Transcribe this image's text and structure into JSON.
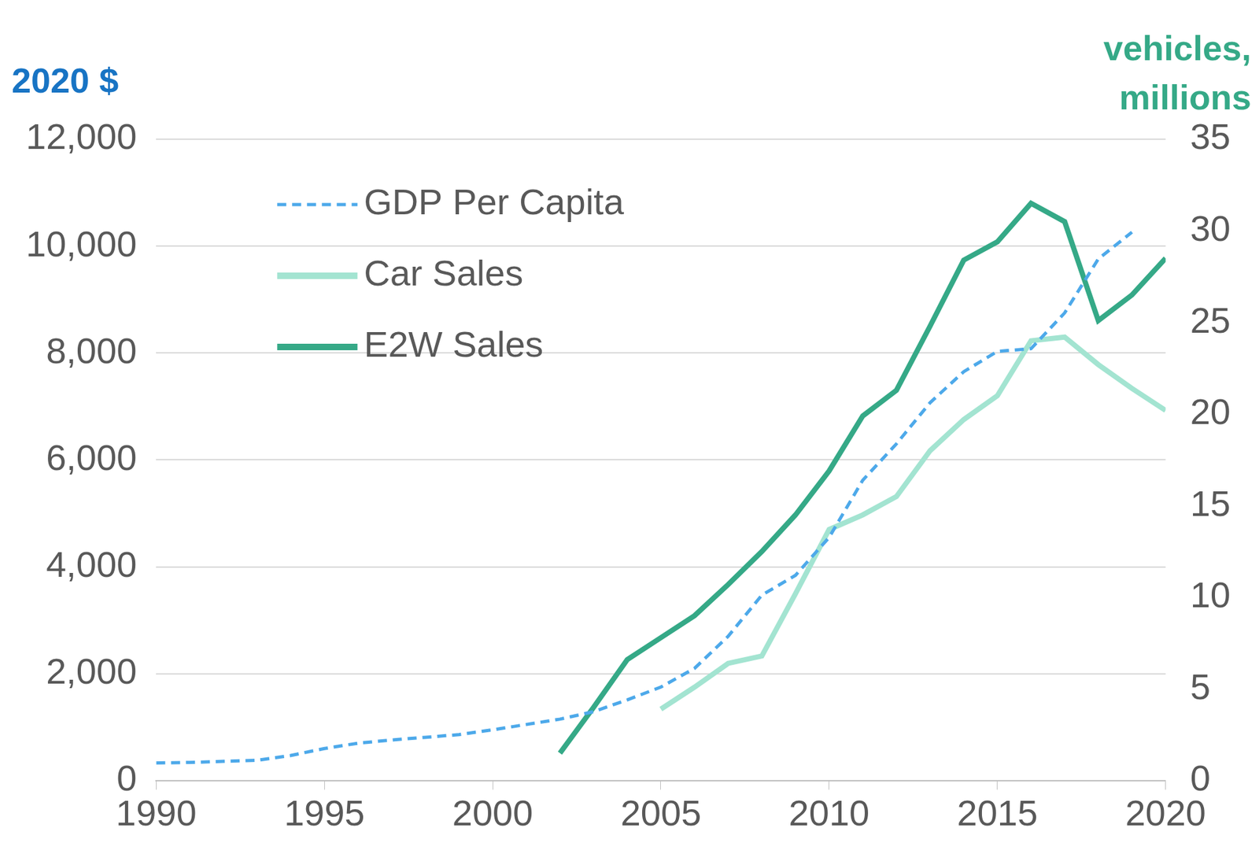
{
  "chart_data": {
    "type": "line",
    "y_label": "2020 $",
    "y2_label": [
      "vehicles,",
      "millions"
    ],
    "x": [
      1990,
      1991,
      1992,
      1993,
      1994,
      1995,
      1996,
      1997,
      1998,
      1999,
      2000,
      2001,
      2002,
      2003,
      2004,
      2005,
      2006,
      2007,
      2008,
      2009,
      2010,
      2011,
      2012,
      2013,
      2014,
      2015,
      2016,
      2017,
      2018,
      2019,
      2020
    ],
    "series": [
      {
        "name": "GDP Per Capita",
        "color": "#4da9ea",
        "line_style": "dashed",
        "axis": "y",
        "values": [
          330,
          340,
          360,
          380,
          470,
          600,
          700,
          760,
          810,
          860,
          950,
          1050,
          1150,
          1290,
          1510,
          1750,
          2100,
          2700,
          3470,
          3840,
          4550,
          5620,
          6300,
          7070,
          7650,
          8030,
          8080,
          8750,
          9760,
          10260,
          null
        ]
      },
      {
        "name": "Car Sales",
        "color": "#a3e4d1",
        "line_style": "solid",
        "axis": "y2",
        "values": [
          null,
          null,
          null,
          null,
          null,
          null,
          null,
          null,
          null,
          null,
          null,
          null,
          null,
          null,
          null,
          3.9,
          5.1,
          6.4,
          6.8,
          10.2,
          13.7,
          14.5,
          15.5,
          18.0,
          19.7,
          21.0,
          24.0,
          24.2,
          22.7,
          21.4,
          20.2
        ]
      },
      {
        "name": "E2W Sales",
        "color": "#35a987",
        "line_style": "solid",
        "axis": "y2",
        "values": [
          null,
          null,
          null,
          null,
          null,
          null,
          null,
          null,
          null,
          null,
          null,
          null,
          1.5,
          4.0,
          6.6,
          7.8,
          9.0,
          10.7,
          12.5,
          14.5,
          16.9,
          19.9,
          21.3,
          24.8,
          28.4,
          29.4,
          31.5,
          30.5,
          25.1,
          26.5,
          28.5
        ]
      }
    ],
    "xlim": [
      1990,
      2020
    ],
    "xticks": [
      1990,
      1995,
      2000,
      2005,
      2010,
      2015,
      2020
    ],
    "ylim": [
      0,
      12000
    ],
    "yticks": [
      0,
      {
        "value": 2000,
        "label": "2,000"
      },
      {
        "value": 4000,
        "label": "4,000"
      },
      {
        "value": 6000,
        "label": "6,000"
      },
      {
        "value": 8000,
        "label": "8,000"
      },
      {
        "value": 10000,
        "label": "10,000"
      },
      {
        "value": 12000,
        "label": "12,000"
      }
    ],
    "y2lim": [
      0,
      35
    ],
    "y2ticks": [
      0,
      5,
      10,
      15,
      20,
      25,
      30,
      35
    ],
    "grid": true,
    "legend": "upper left"
  }
}
